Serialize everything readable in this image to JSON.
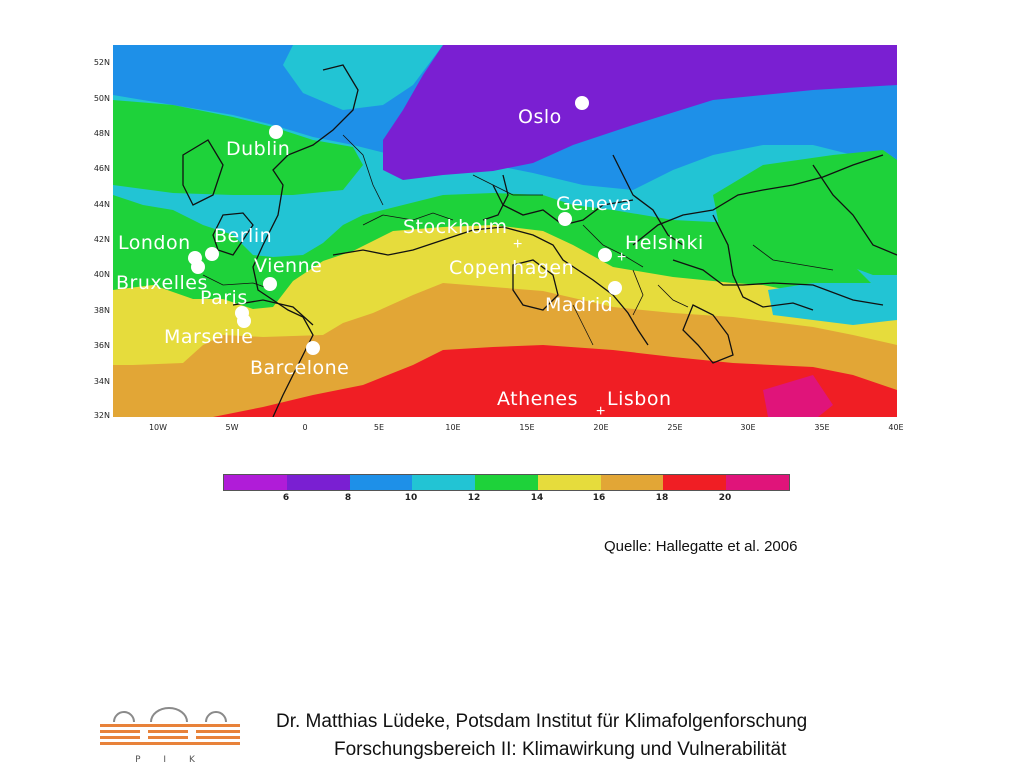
{
  "map": {
    "lat_labels": [
      "52N",
      "50N",
      "48N",
      "46N",
      "44N",
      "42N",
      "40N",
      "38N",
      "36N",
      "34N",
      "32N"
    ],
    "lon_labels": [
      "10W",
      "5W",
      "0",
      "5E",
      "10E",
      "15E",
      "20E",
      "25E",
      "30E",
      "35E",
      "40E"
    ],
    "cities": [
      {
        "name": "Oslo"
      },
      {
        "name": "Dublin"
      },
      {
        "name": "Geneva"
      },
      {
        "name": "Stockholm"
      },
      {
        "name": "London"
      },
      {
        "name": "Berlin"
      },
      {
        "name": "Helsinki"
      },
      {
        "name": "Vienne"
      },
      {
        "name": "Copenhagen"
      },
      {
        "name": "Bruxelles"
      },
      {
        "name": "Paris"
      },
      {
        "name": "Madrid"
      },
      {
        "name": "Marseille"
      },
      {
        "name": "Barcelone"
      },
      {
        "name": "Athenes"
      },
      {
        "name": "Lisbon"
      }
    ],
    "colors": {
      "lt6": "#b01cd8",
      "c6_8": "#7a1fd2",
      "c8_10": "#1e90e8",
      "c10_12": "#22c4d4",
      "c12_14": "#1ed23a",
      "c14_16": "#e6dc3c",
      "c16_18": "#e2a636",
      "c18_20": "#f01e24",
      "gt20": "#e0147a"
    }
  },
  "colorbar": {
    "labels": [
      "6",
      "8",
      "10",
      "12",
      "14",
      "16",
      "18",
      "20"
    ]
  },
  "source": "Quelle: Hallegatte et al. 2006",
  "footer": {
    "line1": "Dr. Matthias Lüdeke, Potsdam Institut für Klimafolgenforschung",
    "line2": "Forschungsbereich II: Klimawirkung und Vulnerabilität",
    "logo_text": "P I K"
  }
}
